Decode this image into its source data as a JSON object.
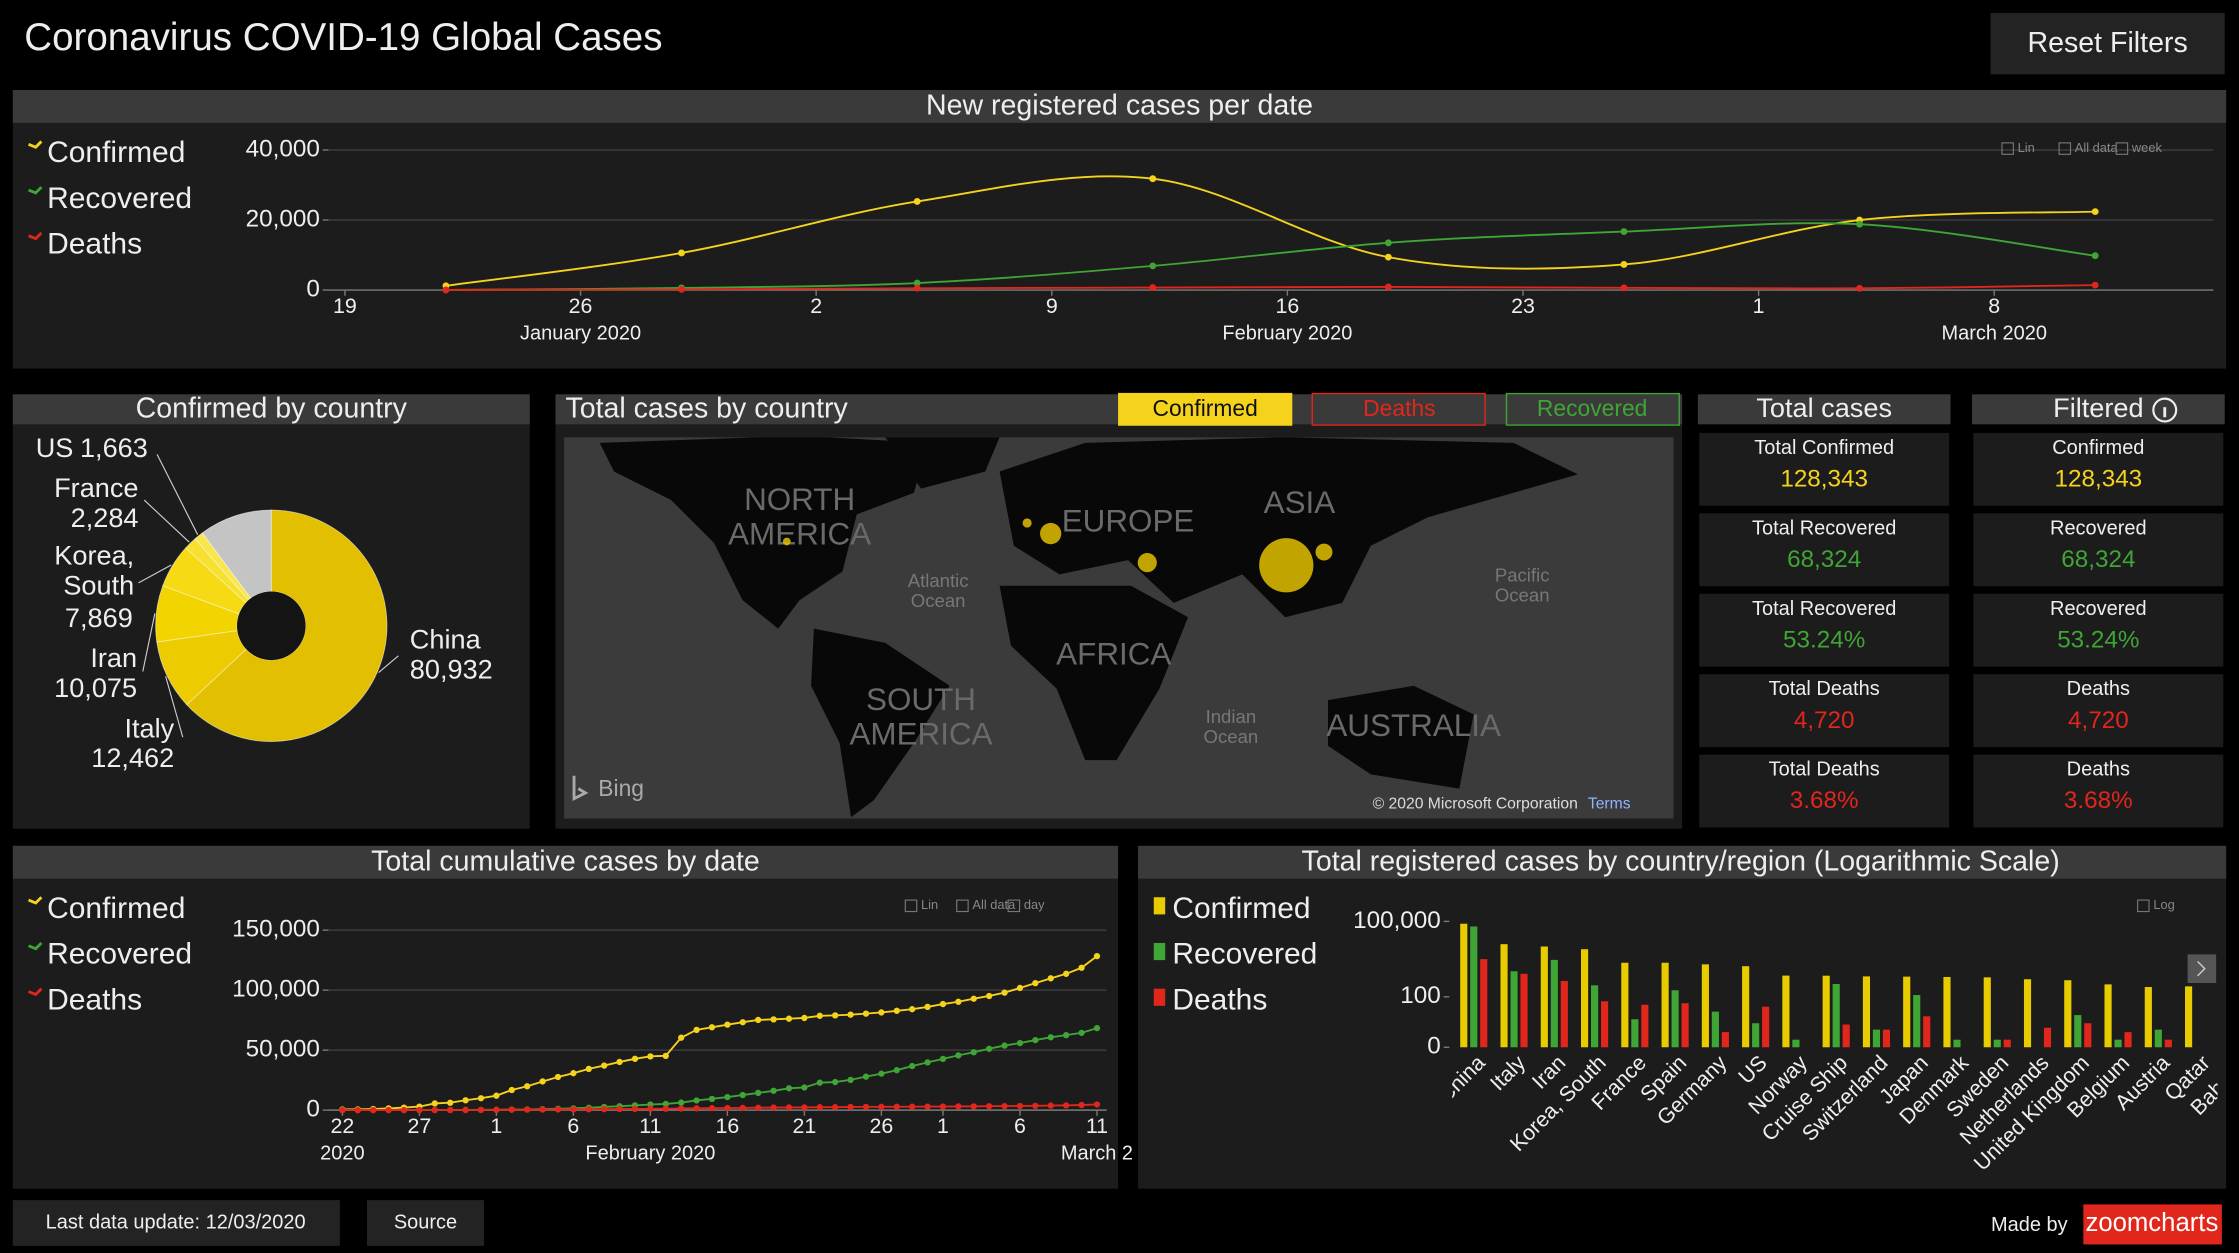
{
  "header": {
    "title": "Coronavirus COVID-19 Global Cases",
    "reset_button": "Reset Filters"
  },
  "chart_data": [
    {
      "type": "line",
      "title": "New registered cases per date",
      "smooth": true,
      "grid": true,
      "legend": "left",
      "x": [
        "2020-01-22",
        "2020-01-29",
        "2020-02-05",
        "2020-02-12",
        "2020-02-19",
        "2020-02-26",
        "2020-03-04",
        "2020-03-11"
      ],
      "series": [
        {
          "name": "Confirmed",
          "color": "#f5d31c",
          "values": [
            1200,
            10600,
            25300,
            31800,
            9400,
            7300,
            20000,
            22400
          ]
        },
        {
          "name": "Recovered",
          "color": "#3fa535",
          "values": [
            30,
            600,
            2000,
            6900,
            13500,
            16700,
            18800,
            9800
          ]
        },
        {
          "name": "Deaths",
          "color": "#e1261c",
          "values": [
            20,
            190,
            510,
            700,
            880,
            640,
            500,
            1400
          ]
        }
      ],
      "xlim": [
        "2020-01-18",
        "2020-03-14"
      ],
      "xticks": [
        {
          "value": "2020-01-19",
          "label": "19"
        },
        {
          "value": "2020-01-26",
          "label": "26"
        },
        {
          "value": "2020-02-02",
          "label": "2"
        },
        {
          "value": "2020-02-09",
          "label": "9"
        },
        {
          "value": "2020-02-16",
          "label": "16"
        },
        {
          "value": "2020-02-23",
          "label": "23"
        },
        {
          "value": "2020-03-01",
          "label": "1"
        },
        {
          "value": "2020-03-08",
          "label": "8"
        }
      ],
      "x_group_labels": [
        {
          "value": "2020-01-26",
          "label": "January 2020"
        },
        {
          "value": "2020-02-16",
          "label": "February 2020"
        },
        {
          "value": "2020-03-08",
          "label": "March 2020"
        }
      ],
      "ylim": [
        0,
        44000
      ],
      "yticks": [
        0,
        {
          "value": 20000,
          "label": "20,000"
        },
        {
          "value": 40000,
          "label": "40,000"
        }
      ],
      "toolbar": [
        "Lin",
        "All data",
        "week"
      ]
    },
    {
      "type": "pie",
      "title": "Confirmed by country",
      "categories": [
        "China",
        "Italy",
        "Iran",
        "Korea, South",
        "France",
        "US",
        null
      ],
      "values": [
        80932,
        12462,
        10075,
        7869,
        2284,
        1663,
        13058
      ],
      "value_labels": [
        "80,932",
        "12,462",
        "10,075",
        "7,869",
        "2,284",
        "1,663",
        null
      ],
      "colors": [
        "#e2bf00",
        "#eccb00",
        "#f2d400",
        "#f5da14",
        "#f7e02e",
        "#f9e64c",
        "#c4c4c4"
      ]
    },
    {
      "type": "line",
      "title": "Total cumulative cases by date",
      "smooth": false,
      "grid": true,
      "legend": "left",
      "x": [
        "2020-01-22",
        "2020-01-23",
        "2020-01-24",
        "2020-01-25",
        "2020-01-26",
        "2020-01-27",
        "2020-01-28",
        "2020-01-29",
        "2020-01-30",
        "2020-01-31",
        "2020-02-01",
        "2020-02-02",
        "2020-02-03",
        "2020-02-04",
        "2020-02-05",
        "2020-02-06",
        "2020-02-07",
        "2020-02-08",
        "2020-02-09",
        "2020-02-10",
        "2020-02-11",
        "2020-02-12",
        "2020-02-13",
        "2020-02-14",
        "2020-02-15",
        "2020-02-16",
        "2020-02-17",
        "2020-02-18",
        "2020-02-19",
        "2020-02-20",
        "2020-02-21",
        "2020-02-22",
        "2020-02-23",
        "2020-02-24",
        "2020-02-25",
        "2020-02-26",
        "2020-02-27",
        "2020-02-28",
        "2020-02-29",
        "2020-03-01",
        "2020-03-02",
        "2020-03-03",
        "2020-03-04",
        "2020-03-05",
        "2020-03-06",
        "2020-03-07",
        "2020-03-08",
        "2020-03-09",
        "2020-03-10",
        "2020-03-11"
      ],
      "series": [
        {
          "name": "Confirmed",
          "color": "#f5d31c",
          "values": [
            555,
            654,
            941,
            1434,
            2118,
            2927,
            5578,
            6166,
            8234,
            9927,
            12038,
            16787,
            19881,
            23892,
            27635,
            30794,
            34391,
            37120,
            40150,
            42762,
            44802,
            45221,
            60368,
            66885,
            69030,
            71224,
            73258,
            75136,
            75639,
            76197,
            76819,
            78572,
            78958,
            79561,
            80406,
            81388,
            82746,
            84112,
            86011,
            88369,
            90306,
            92840,
            95120,
            97886,
            101801,
            105847,
            109821,
            113590,
            118620,
            128343
          ]
        },
        {
          "name": "Recovered",
          "color": "#3fa535",
          "values": [
            28,
            30,
            36,
            39,
            52,
            61,
            107,
            126,
            143,
            222,
            284,
            472,
            623,
            852,
            1124,
            1487,
            2011,
            2616,
            3244,
            3946,
            4683,
            5150,
            6295,
            8058,
            9395,
            10865,
            12583,
            14352,
            16121,
            18177,
            18890,
            22886,
            23394,
            25227,
            27905,
            30384,
            33277,
            36711,
            39782,
            42716,
            45602,
            48228,
            51170,
            53796,
            55865,
            58358,
            60694,
            62494,
            64404,
            68324
          ]
        },
        {
          "name": "Deaths",
          "color": "#e1261c",
          "values": [
            17,
            18,
            26,
            42,
            56,
            82,
            131,
            133,
            171,
            213,
            259,
            362,
            426,
            492,
            564,
            634,
            719,
            806,
            906,
            1013,
            1113,
            1118,
            1371,
            1523,
            1666,
            1770,
            1868,
            2007,
            2122,
            2247,
            2251,
            2458,
            2469,
            2629,
            2708,
            2770,
            2814,
            2872,
            2941,
            2996,
            3085,
            3160,
            3254,
            3348,
            3460,
            3558,
            3802,
            3988,
            4262,
            4720
          ]
        }
      ],
      "xlim": [
        "2020-01-21",
        "2020-03-12"
      ],
      "xticks": [
        {
          "value": "2020-01-22",
          "label": "22"
        },
        {
          "value": "2020-01-27",
          "label": "27"
        },
        {
          "value": "2020-02-01",
          "label": "1"
        },
        {
          "value": "2020-02-06",
          "label": "6"
        },
        {
          "value": "2020-02-11",
          "label": "11"
        },
        {
          "value": "2020-02-16",
          "label": "16"
        },
        {
          "value": "2020-02-21",
          "label": "21"
        },
        {
          "value": "2020-02-26",
          "label": "26"
        },
        {
          "value": "2020-03-01",
          "label": "1"
        },
        {
          "value": "2020-03-06",
          "label": "6"
        },
        {
          "value": "2020-03-11",
          "label": "11"
        }
      ],
      "x_group_labels": [
        {
          "value": "2020-01-22",
          "label": "2020"
        },
        {
          "value": "2020-02-11",
          "label": "February 2020"
        },
        {
          "value": "2020-03-11",
          "label": "March 2"
        }
      ],
      "ylim": [
        0,
        155000
      ],
      "yticks": [
        0,
        {
          "value": 50000,
          "label": "50,000"
        },
        {
          "value": 100000,
          "label": "100,000"
        },
        {
          "value": 150000,
          "label": "150,000"
        }
      ],
      "toolbar": [
        "Lin",
        "All data",
        "day"
      ]
    },
    {
      "type": "bar",
      "title": "Total registered cases by country/region (Logarithmic Scale)",
      "log_scale": true,
      "grid": false,
      "legend": "left",
      "categories": [
        "China",
        "Italy",
        "Iran",
        "Korea, South",
        "France",
        "Spain",
        "Germany",
        "US",
        "Norway",
        "Cruise Ship",
        "Switzerland",
        "Japan",
        "Denmark",
        "Sweden",
        "Netherlands",
        "United Kingdom",
        "Belgium",
        "Austria",
        "Qatar",
        "Bahrain"
      ],
      "series": [
        {
          "name": "Confirmed",
          "color": "#e8cc00",
          "values": [
            80932,
            12462,
            10075,
            7869,
            2284,
            2277,
            1966,
            1663,
            702,
            696,
            652,
            639,
            617,
            599,
            503,
            460,
            314,
            246,
            262,
            195
          ]
        },
        {
          "name": "Recovered",
          "color": "#3fa535",
          "values": [
            62793,
            1045,
            2959,
            288,
            12,
            183,
            25,
            8,
            1,
            325,
            4,
            118,
            1,
            1,
            0,
            18,
            1,
            4,
            0,
            44
          ]
        },
        {
          "name": "Deaths",
          "color": "#e1261c",
          "values": [
            3169,
            827,
            429,
            66,
            48,
            55,
            3,
            40,
            0,
            7,
            4,
            16,
            0,
            1,
            5,
            8,
            3,
            1,
            0,
            0
          ]
        }
      ],
      "ylim": [
        0,
        190000
      ],
      "yticks": [
        0,
        100,
        {
          "value": 100000,
          "label": "100,000"
        }
      ],
      "toolbar": [
        "Log"
      ]
    }
  ],
  "map": {
    "title": "Total cases by country",
    "buttons": [
      "Confirmed",
      "Deaths",
      "Recovered"
    ],
    "labels": [
      "NORTH AMERICA",
      "EUROPE",
      "ASIA",
      "AFRICA",
      "SOUTH AMERICA",
      "AUSTRALIA",
      "Atlantic Ocean",
      "Pacific Ocean",
      "Indian Ocean"
    ],
    "logo": "Bing",
    "attribution": "© 2020 Microsoft Corporation",
    "terms": "Terms",
    "bubble_color": "#e3bf00",
    "bubbles": [
      {
        "lon": 112,
        "lat": 31,
        "value": 80932
      },
      {
        "lon": 12,
        "lat": 43,
        "value": 12462
      },
      {
        "lon": 53,
        "lat": 32,
        "value": 10075
      },
      {
        "lon": 128,
        "lat": 36,
        "value": 7869
      },
      {
        "lon": 2,
        "lat": 47,
        "value": 2284
      },
      {
        "lon": -100,
        "lat": 40,
        "value": 1663
      }
    ]
  },
  "total_cases": {
    "title": "Total cases",
    "items": [
      {
        "label": "Total Confirmed",
        "value": "128,343",
        "color": "#f5d31c"
      },
      {
        "label": "Total Recovered",
        "value": "68,324",
        "color": "#3fa535"
      },
      {
        "label": "Total Recovered",
        "value": "53.24%",
        "color": "#3fa535"
      },
      {
        "label": "Total Deaths",
        "value": "4,720",
        "color": "#e1261c"
      },
      {
        "label": "Total Deaths",
        "value": "3.68%",
        "color": "#e1261c"
      }
    ]
  },
  "filtered": {
    "title": "Filtered",
    "items": [
      {
        "label": "Confirmed",
        "value": "128,343",
        "color": "#f5d31c"
      },
      {
        "label": "Recovered",
        "value": "68,324",
        "color": "#3fa535"
      },
      {
        "label": "Recovered",
        "value": "53.24%",
        "color": "#3fa535"
      },
      {
        "label": "Deaths",
        "value": "4,720",
        "color": "#e1261c"
      },
      {
        "label": "Deaths",
        "value": "3.68%",
        "color": "#e1261c"
      }
    ]
  },
  "footer": {
    "last_update": "Last data update: 12/03/2020",
    "source": "Source",
    "made_by": "Made by",
    "logo": "zoomcharts"
  }
}
